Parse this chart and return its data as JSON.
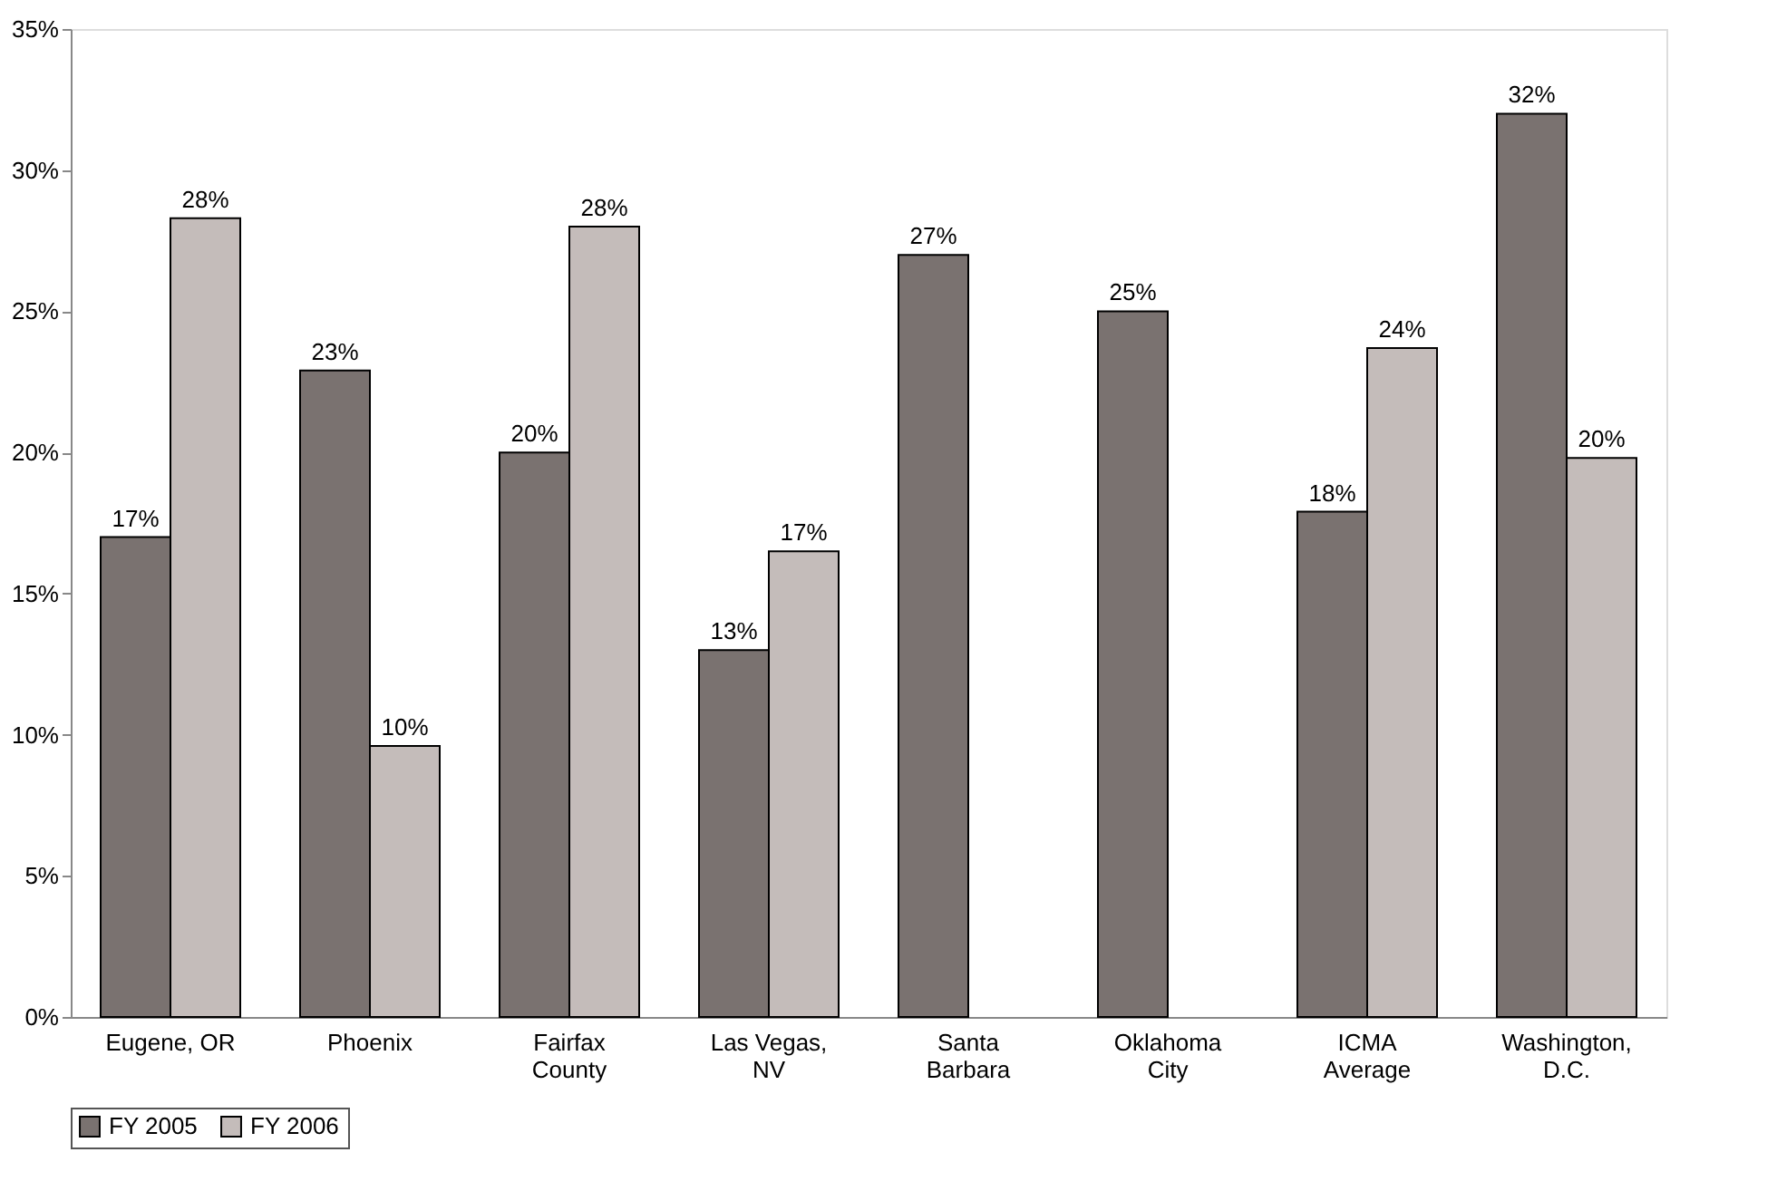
{
  "chart_data": {
    "type": "bar",
    "categories": [
      "Eugene, OR",
      "Phoenix",
      "Fairfax County",
      "Las Vegas, NV",
      "Santa Barbara",
      "Oklahoma City",
      "ICMA Average",
      "Washington, D.C."
    ],
    "series": [
      {
        "name": "FY 2005",
        "color": "#7a7270",
        "values": [
          17,
          22.9,
          20,
          13,
          27,
          25,
          17.9,
          32
        ],
        "value_labels": [
          "17%",
          "23%",
          "20%",
          "13%",
          "27%",
          "25%",
          "18%",
          "32%"
        ]
      },
      {
        "name": "FY 2006",
        "color": "#c4bcba",
        "values": [
          28.3,
          9.6,
          28,
          16.5,
          null,
          null,
          23.7,
          19.8
        ],
        "value_labels": [
          "28%",
          "10%",
          "28%",
          "17%",
          null,
          null,
          "24%",
          "20%"
        ]
      }
    ],
    "ylim": [
      0,
      35
    ],
    "yticks": [
      {
        "value": 0,
        "label": "0%"
      },
      {
        "value": 5,
        "label": "5%"
      },
      {
        "value": 10,
        "label": "10%"
      },
      {
        "value": 15,
        "label": "15%"
      },
      {
        "value": 20,
        "label": "20%"
      },
      {
        "value": 25,
        "label": "25%"
      },
      {
        "value": 30,
        "label": "30%"
      },
      {
        "value": 35,
        "label": "35%"
      }
    ],
    "grid": false,
    "legend": "bottom"
  }
}
